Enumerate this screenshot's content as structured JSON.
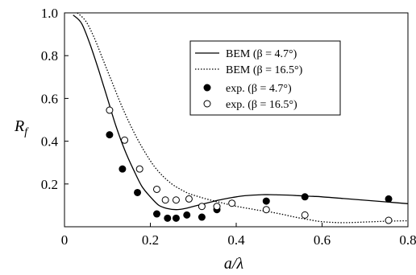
{
  "chart_data": {
    "type": "line",
    "xlabel": "a/λ",
    "ylabel": "R",
    "ylabel_sub": "f",
    "xlim": [
      0,
      0.8
    ],
    "ylim": [
      0,
      1.0
    ],
    "xticks": [
      "0",
      "0.2",
      "0.4",
      "0.6",
      "0.8"
    ],
    "yticks": [
      "0.2",
      "0.4",
      "0.6",
      "0.8",
      "1.0"
    ],
    "legend_position": "top-right",
    "legend": [
      {
        "label": "BEM (β = 4.7°)",
        "style": "solid-line"
      },
      {
        "label": "BEM (β = 16.5°)",
        "style": "dotted-line"
      },
      {
        "label": "exp. (β = 4.7°)",
        "style": "filled-circle"
      },
      {
        "label": "exp. (β = 16.5°)",
        "style": "open-circle"
      }
    ],
    "series": [
      {
        "name": "BEM (β = 4.7°)",
        "kind": "line",
        "x": [
          0.02,
          0.04,
          0.06,
          0.08,
          0.1,
          0.12,
          0.14,
          0.16,
          0.18,
          0.2,
          0.22,
          0.24,
          0.26,
          0.28,
          0.3,
          0.32,
          0.34,
          0.36,
          0.38,
          0.4,
          0.42,
          0.44,
          0.46,
          0.48,
          0.5,
          0.52,
          0.54,
          0.56,
          0.58,
          0.6,
          0.65,
          0.7,
          0.75,
          0.8
        ],
        "y": [
          0.99,
          0.95,
          0.85,
          0.73,
          0.6,
          0.47,
          0.36,
          0.27,
          0.19,
          0.14,
          0.1,
          0.085,
          0.08,
          0.085,
          0.095,
          0.105,
          0.115,
          0.125,
          0.133,
          0.14,
          0.145,
          0.148,
          0.15,
          0.15,
          0.149,
          0.148,
          0.146,
          0.144,
          0.142,
          0.14,
          0.132,
          0.124,
          0.116,
          0.108
        ]
      },
      {
        "name": "BEM (β = 16.5°)",
        "kind": "line",
        "x": [
          0.03,
          0.05,
          0.07,
          0.09,
          0.11,
          0.13,
          0.15,
          0.17,
          0.19,
          0.21,
          0.23,
          0.25,
          0.27,
          0.29,
          0.31,
          0.33,
          0.35,
          0.37,
          0.39,
          0.41,
          0.43,
          0.45,
          0.47,
          0.49,
          0.51,
          0.53,
          0.55,
          0.57,
          0.59,
          0.61,
          0.63,
          0.65,
          0.7,
          0.75,
          0.8
        ],
        "y": [
          1.0,
          0.96,
          0.88,
          0.78,
          0.68,
          0.58,
          0.49,
          0.41,
          0.34,
          0.28,
          0.235,
          0.2,
          0.175,
          0.155,
          0.142,
          0.13,
          0.12,
          0.11,
          0.1,
          0.092,
          0.085,
          0.078,
          0.072,
          0.065,
          0.057,
          0.048,
          0.04,
          0.033,
          0.026,
          0.022,
          0.02,
          0.019,
          0.022,
          0.026,
          0.028
        ]
      },
      {
        "name": "exp. (β = 4.7°)",
        "kind": "scatter",
        "filled": true,
        "x": [
          0.105,
          0.135,
          0.17,
          0.215,
          0.24,
          0.26,
          0.285,
          0.32,
          0.355,
          0.47,
          0.56,
          0.755
        ],
        "y": [
          0.43,
          0.27,
          0.16,
          0.06,
          0.04,
          0.04,
          0.055,
          0.045,
          0.08,
          0.12,
          0.14,
          0.13
        ]
      },
      {
        "name": "exp. (β = 16.5°)",
        "kind": "scatter",
        "filled": false,
        "x": [
          0.105,
          0.14,
          0.175,
          0.215,
          0.235,
          0.26,
          0.29,
          0.32,
          0.355,
          0.39,
          0.47,
          0.56,
          0.755
        ],
        "y": [
          0.545,
          0.405,
          0.27,
          0.175,
          0.125,
          0.125,
          0.13,
          0.095,
          0.095,
          0.11,
          0.08,
          0.055,
          0.03
        ]
      }
    ]
  }
}
